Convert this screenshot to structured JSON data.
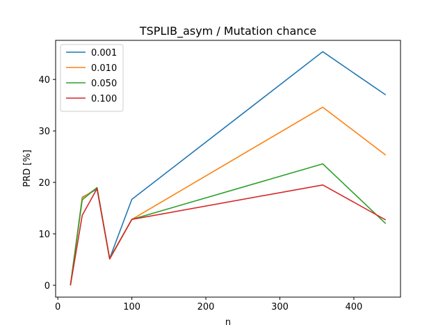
{
  "chart_data": {
    "type": "line",
    "title": "TSPLIB_asym / Mutation chance",
    "xlabel": "n",
    "ylabel": "PRD [%]",
    "x": [
      17,
      33,
      53,
      70,
      100,
      358,
      443
    ],
    "xlim": [
      -3,
      463
    ],
    "ylim": [
      -2.3,
      47.6
    ],
    "xticks": [
      0,
      100,
      200,
      300,
      400
    ],
    "yticks": [
      0,
      10,
      20,
      30,
      40
    ],
    "legend_placement": "upper-left",
    "grid": false,
    "series": [
      {
        "name": "0.001",
        "color": "#1f77b4",
        "values": [
          0,
          17.1,
          18.7,
          5.2,
          16.7,
          45.4,
          37.0
        ]
      },
      {
        "name": "0.010",
        "color": "#ff7f0e",
        "values": [
          0,
          17.0,
          18.9,
          5.2,
          12.8,
          34.6,
          25.3
        ]
      },
      {
        "name": "0.050",
        "color": "#2ca02c",
        "values": [
          0,
          16.6,
          19.0,
          5.2,
          12.8,
          23.6,
          12.0
        ]
      },
      {
        "name": "0.100",
        "color": "#d62728",
        "values": [
          0,
          13.6,
          18.8,
          5.1,
          12.8,
          19.5,
          12.7
        ]
      }
    ]
  }
}
